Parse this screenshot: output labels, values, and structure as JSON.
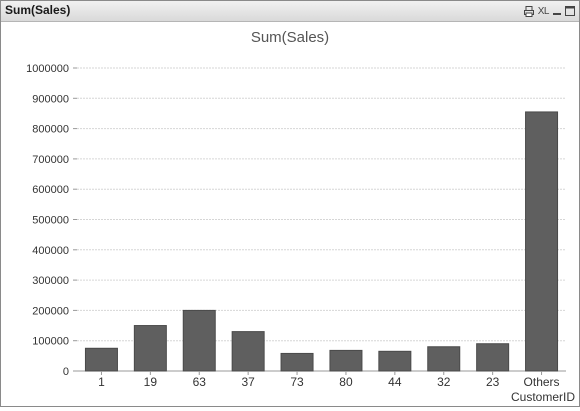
{
  "window": {
    "caption": "Sum(Sales)",
    "print_icon": "print-icon",
    "xl_label": "XL",
    "minimize_icon": "minimize-icon",
    "maximize_icon": "maximize-icon"
  },
  "colors": {
    "bar": "#5f5f5f",
    "bar_edge": "#4a4a4a",
    "grid": "#d6d6d6",
    "axis_text": "#333333",
    "title_text": "#555555"
  },
  "chart_data": {
    "type": "bar",
    "title": "Sum(Sales)",
    "xlabel": "CustomerID",
    "ylabel": "",
    "categories": [
      "1",
      "19",
      "63",
      "37",
      "73",
      "80",
      "44",
      "32",
      "23",
      "Others"
    ],
    "values": [
      75000,
      150000,
      200000,
      130000,
      58000,
      68000,
      65000,
      80000,
      90000,
      855000
    ],
    "ylim": [
      0,
      1000000
    ],
    "yticks": [
      0,
      100000,
      200000,
      300000,
      400000,
      500000,
      600000,
      700000,
      800000,
      900000,
      1000000
    ],
    "grid": true,
    "legend": "none"
  }
}
